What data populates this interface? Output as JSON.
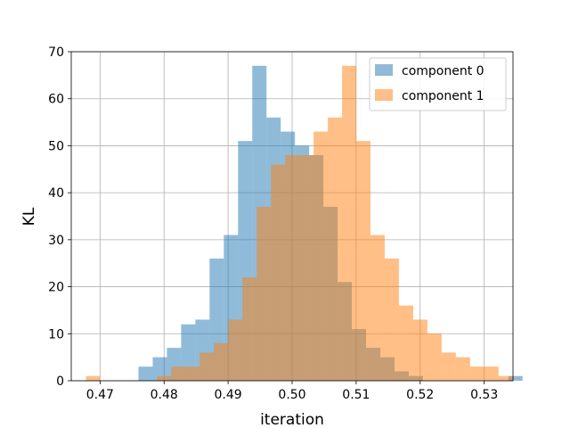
{
  "chart_data": {
    "type": "bar",
    "xlabel": "iteration",
    "ylabel": "KL",
    "xlim": [
      0.4655,
      0.5345
    ],
    "ylim": [
      0,
      70
    ],
    "grid": true,
    "legend_position": "top-right",
    "xticks": [
      {
        "value": 0.47,
        "label": "0.47"
      },
      {
        "value": 0.48,
        "label": "0.48"
      },
      {
        "value": 0.49,
        "label": "0.49"
      },
      {
        "value": 0.5,
        "label": "0.50"
      },
      {
        "value": 0.51,
        "label": "0.51"
      },
      {
        "value": 0.52,
        "label": "0.52"
      },
      {
        "value": 0.53,
        "label": "0.53"
      }
    ],
    "yticks": [
      {
        "value": 0,
        "label": "0"
      },
      {
        "value": 10,
        "label": "10"
      },
      {
        "value": 20,
        "label": "20"
      },
      {
        "value": 30,
        "label": "30"
      },
      {
        "value": 40,
        "label": "40"
      },
      {
        "value": 50,
        "label": "50"
      },
      {
        "value": 60,
        "label": "60"
      },
      {
        "value": 70,
        "label": "70"
      }
    ],
    "series": [
      {
        "name": "component 0",
        "color": "#1f77b4",
        "opacity": 0.5,
        "bin_start": 0.476,
        "bin_width": 0.002222,
        "counts": [
          3,
          5,
          7,
          12,
          13,
          26,
          31,
          51,
          67,
          56,
          53,
          50,
          48,
          37,
          21,
          11,
          7,
          5,
          2,
          1,
          0,
          0,
          0,
          0,
          0,
          0,
          1
        ]
      },
      {
        "name": "component 1",
        "color": "#ff7f0e",
        "opacity": 0.5,
        "bin_start": 0.4678,
        "bin_width": 0.002222,
        "counts": [
          1,
          0,
          0,
          0,
          0,
          1,
          3,
          3,
          6,
          8,
          13,
          22,
          37,
          46,
          48,
          48,
          53,
          56,
          67,
          51,
          31,
          26,
          16,
          13,
          10,
          6,
          5,
          3,
          3,
          1
        ]
      }
    ]
  }
}
